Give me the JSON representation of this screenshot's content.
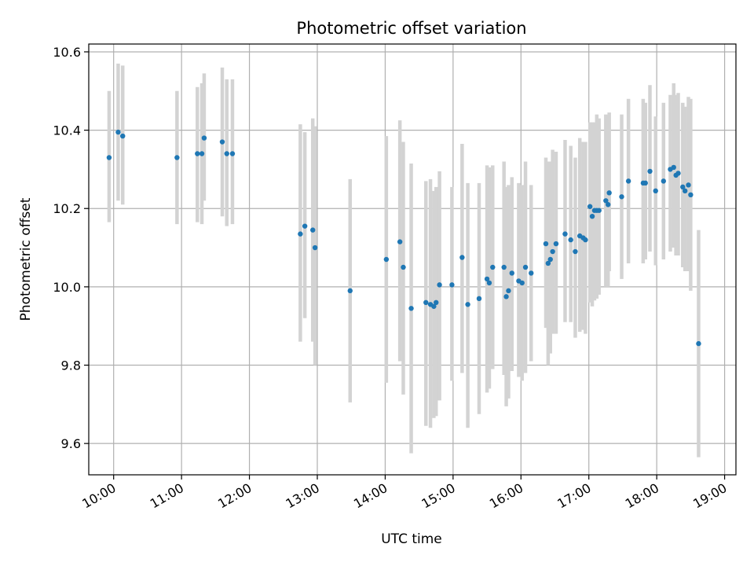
{
  "chart_data": {
    "type": "scatter",
    "title": "Photometric offset variation",
    "xlabel": "UTC time",
    "ylabel": "Photometric offset",
    "x_ticks": [
      "10:00",
      "11:00",
      "12:00",
      "13:00",
      "14:00",
      "15:00",
      "16:00",
      "17:00",
      "18:00",
      "19:00"
    ],
    "y_ticks": [
      "9.6",
      "9.8",
      "10.0",
      "10.2",
      "10.4",
      "10.6"
    ],
    "xlim": [
      "09:38",
      "19:10"
    ],
    "ylim": [
      9.52,
      10.62
    ],
    "grid": true,
    "colors": {
      "points": "#1f77b4",
      "errorbars": "#d3d3d3",
      "grid": "#b0b0b0"
    },
    "series": [
      {
        "x": [
          "09:56",
          "10:04",
          "10:08",
          "10:56",
          "11:14",
          "11:18",
          "11:20",
          "11:36",
          "11:40",
          "11:45",
          "12:45",
          "12:49",
          "12:56",
          "12:58",
          "13:29",
          "14:01",
          "14:13",
          "14:16",
          "14:23",
          "14:36",
          "14:40",
          "14:43",
          "14:45",
          "14:48",
          "14:59",
          "15:08",
          "15:13",
          "15:23",
          "15:30",
          "15:32",
          "15:35",
          "15:45",
          "15:47",
          "15:49",
          "15:52",
          "15:58",
          "16:01",
          "16:04",
          "16:09",
          "16:22",
          "16:24",
          "16:26",
          "16:28",
          "16:31",
          "16:39",
          "16:44",
          "16:48",
          "16:52",
          "16:55",
          "16:57",
          "17:01",
          "17:03",
          "17:05",
          "17:07",
          "17:09",
          "17:15",
          "17:17",
          "17:18",
          "17:29",
          "17:35",
          "17:48",
          "17:50",
          "17:54",
          "17:59",
          "18:06",
          "18:12",
          "18:15",
          "18:17",
          "18:19",
          "18:23",
          "18:25",
          "18:28",
          "18:30",
          "18:37"
        ],
        "y": [
          10.33,
          10.395,
          10.385,
          10.33,
          10.34,
          10.34,
          10.38,
          10.37,
          10.34,
          10.34,
          10.135,
          10.155,
          10.145,
          10.1,
          9.99,
          10.07,
          10.115,
          10.05,
          9.945,
          9.96,
          9.955,
          9.95,
          9.96,
          10.005,
          10.005,
          10.075,
          9.955,
          9.97,
          10.02,
          10.01,
          10.05,
          10.05,
          9.975,
          9.99,
          10.035,
          10.015,
          10.01,
          10.05,
          10.035,
          10.11,
          10.06,
          10.07,
          10.09,
          10.11,
          10.135,
          10.12,
          10.09,
          10.13,
          10.125,
          10.12,
          10.205,
          10.18,
          10.195,
          10.195,
          10.195,
          10.22,
          10.21,
          10.24,
          10.23,
          10.27,
          10.265,
          10.265,
          10.295,
          10.245,
          10.27,
          10.3,
          10.305,
          10.285,
          10.29,
          10.255,
          10.245,
          10.26,
          10.235,
          9.855
        ],
        "yerr_low": [
          10.165,
          10.22,
          10.21,
          10.16,
          10.165,
          10.16,
          10.22,
          10.18,
          10.155,
          10.16,
          9.86,
          9.92,
          9.86,
          9.8,
          9.705,
          9.755,
          9.81,
          9.725,
          9.575,
          9.645,
          9.64,
          9.665,
          9.67,
          9.71,
          9.76,
          9.78,
          9.64,
          9.675,
          9.73,
          9.74,
          9.79,
          9.775,
          9.695,
          9.715,
          9.785,
          9.77,
          9.76,
          9.78,
          9.81,
          9.895,
          9.8,
          9.83,
          9.88,
          9.88,
          9.91,
          9.91,
          9.87,
          9.885,
          9.89,
          9.88,
          9.96,
          9.95,
          9.965,
          9.97,
          9.98,
          10.0,
          10.0,
          10.04,
          10.02,
          10.06,
          10.06,
          10.07,
          10.09,
          10.055,
          10.07,
          10.09,
          10.1,
          10.08,
          10.08,
          10.05,
          10.04,
          10.04,
          9.99,
          9.565
        ],
        "yerr_high": [
          10.5,
          10.57,
          10.565,
          10.5,
          10.51,
          10.52,
          10.545,
          10.56,
          10.53,
          10.53,
          10.415,
          10.395,
          10.43,
          10.41,
          10.275,
          10.385,
          10.425,
          10.37,
          10.315,
          10.27,
          10.275,
          10.245,
          10.255,
          10.295,
          10.255,
          10.365,
          10.265,
          10.265,
          10.31,
          10.305,
          10.31,
          10.32,
          10.255,
          10.26,
          10.28,
          10.265,
          10.26,
          10.32,
          10.26,
          10.33,
          10.32,
          10.32,
          10.35,
          10.345,
          10.375,
          10.36,
          10.33,
          10.38,
          10.37,
          10.37,
          10.42,
          10.42,
          10.42,
          10.44,
          10.43,
          10.44,
          10.43,
          10.445,
          10.44,
          10.48,
          10.48,
          10.47,
          10.515,
          10.435,
          10.47,
          10.49,
          10.52,
          10.49,
          10.495,
          10.47,
          10.46,
          10.485,
          10.48,
          10.145
        ]
      }
    ]
  }
}
